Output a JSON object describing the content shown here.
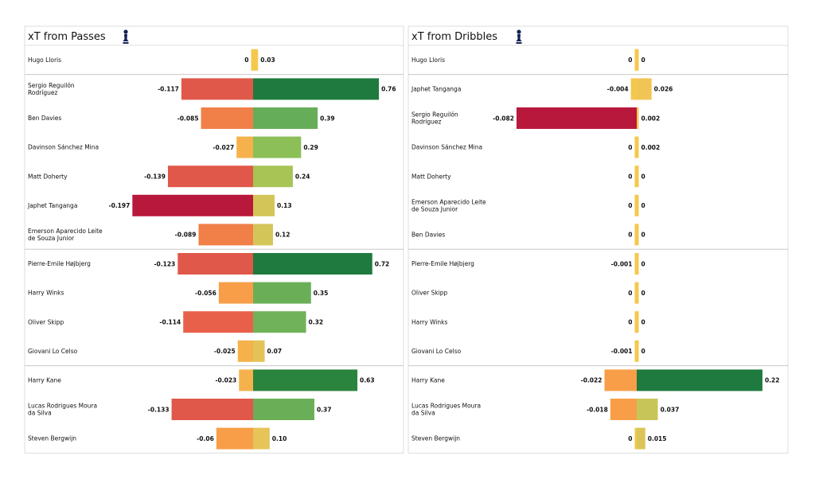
{
  "chart_data": [
    {
      "type": "bar",
      "title": "xT from Passes",
      "categories": [
        "Hugo Lloris",
        "Sergio Reguilón Rodríguez",
        "Ben Davies",
        "Davinson Sánchez Mina",
        "Matt Doherty",
        "Japhet Tanganga",
        "Emerson Aparecido Leite de Souza Junior",
        "Pierre-Emile Højbjerg",
        "Harry Winks",
        "Oliver Skipp",
        "Giovani Lo Celso",
        "Harry Kane",
        "Lucas Rodrigues Moura da Silva",
        "Steven Bergwijn"
      ],
      "name_lines": [
        [
          "Hugo Lloris"
        ],
        [
          "Sergio Reguilón",
          "Rodríguez"
        ],
        [
          "Ben Davies"
        ],
        [
          "Davinson Sánchez Mina"
        ],
        [
          "Matt Doherty"
        ],
        [
          "Japhet Tanganga"
        ],
        [
          "Emerson Aparecido Leite",
          "de Souza Junior"
        ],
        [
          "Pierre-Emile Højbjerg"
        ],
        [
          "Harry Winks"
        ],
        [
          "Oliver Skipp"
        ],
        [
          "Giovani Lo Celso"
        ],
        [
          "Harry Kane"
        ],
        [
          "Lucas Rodrigues Moura",
          "da Silva"
        ],
        [
          "Steven Bergwijn"
        ]
      ],
      "negative_values": [
        0,
        -0.117,
        -0.085,
        -0.027,
        -0.139,
        -0.197,
        -0.089,
        -0.123,
        -0.056,
        -0.114,
        -0.025,
        -0.023,
        -0.133,
        -0.06
      ],
      "positive_values": [
        0.03,
        0.76,
        0.39,
        0.29,
        0.24,
        0.13,
        0.12,
        0.72,
        0.35,
        0.32,
        0.07,
        0.63,
        0.37,
        0.1
      ],
      "negative_labels": [
        "0",
        "-0.117",
        "-0.085",
        "-0.027",
        "-0.139",
        "-0.197",
        "-0.089",
        "-0.123",
        "-0.056",
        "-0.114",
        "-0.025",
        "-0.023",
        "-0.133",
        "-0.06"
      ],
      "positive_labels": [
        "0.03",
        "0.76",
        "0.39",
        "0.29",
        "0.24",
        "0.13",
        "0.12",
        "0.72",
        "0.35",
        "0.32",
        "0.07",
        "0.63",
        "0.37",
        "0.10"
      ],
      "group_breaks_after": [
        0,
        6,
        10
      ],
      "negative_colors": [
        "#f5c84c",
        "#e0584a",
        "#f08048",
        "#f5b24c",
        "#e0584a",
        "#b8183c",
        "#f08048",
        "#e0584a",
        "#f89e48",
        "#e8604a",
        "#f5b24c",
        "#f5b24c",
        "#e0584a",
        "#f89e48"
      ],
      "positive_colors": [
        "#f5c84c",
        "#1e7a3e",
        "#66ad5a",
        "#8cbf58",
        "#a8c455",
        "#d4c558",
        "#d4c558",
        "#1e7a3e",
        "#6aaf58",
        "#70b25a",
        "#e3c358",
        "#2a843e",
        "#6aaf58",
        "#e6c458"
      ],
      "logo": "tottenham-crest-icon"
    },
    {
      "type": "bar",
      "title": "xT from Dribbles",
      "categories": [
        "Hugo Lloris",
        "Japhet Tanganga",
        "Sergio Reguilón Rodríguez",
        "Davinson Sánchez Mina",
        "Matt Doherty",
        "Emerson Aparecido Leite de Souza Junior",
        "Ben Davies",
        "Pierre-Emile Højbjerg",
        "Oliver Skipp",
        "Harry Winks",
        "Giovani Lo Celso",
        "Harry Kane",
        "Lucas Rodrigues Moura da Silva",
        "Steven Bergwijn"
      ],
      "name_lines": [
        [
          "Hugo Lloris"
        ],
        [
          "Japhet Tanganga"
        ],
        [
          "Sergio Reguilón",
          "Rodríguez"
        ],
        [
          "Davinson Sánchez Mina"
        ],
        [
          "Matt Doherty"
        ],
        [
          "Emerson Aparecido Leite",
          "de Souza Junior"
        ],
        [
          "Ben Davies"
        ],
        [
          "Pierre-Emile Højbjerg"
        ],
        [
          "Oliver Skipp"
        ],
        [
          "Harry Winks"
        ],
        [
          "Giovani Lo Celso"
        ],
        [
          "Harry Kane"
        ],
        [
          "Lucas Rodrigues Moura",
          "da Silva"
        ],
        [
          "Steven Bergwijn"
        ]
      ],
      "negative_values": [
        0,
        -0.004,
        -0.082,
        0,
        0,
        0,
        0,
        -0.001,
        0,
        0,
        -0.001,
        -0.022,
        -0.018,
        0
      ],
      "positive_values": [
        0,
        0.026,
        0.002,
        0.002,
        0,
        0,
        0,
        0,
        0,
        0,
        0,
        0.22,
        0.037,
        0.015
      ],
      "negative_labels": [
        "0",
        "-0.004",
        "-0.082",
        "0",
        "0",
        "0",
        "0",
        "-0.001",
        "0",
        "0",
        "-0.001",
        "-0.022",
        "-0.018",
        "0"
      ],
      "positive_labels": [
        "0",
        "0.026",
        "0.002",
        "0.002",
        "0",
        "0",
        "0",
        "0",
        "0",
        "0",
        "0",
        "0.22",
        "0.037",
        "0.015"
      ],
      "group_breaks_after": [
        0,
        6,
        10
      ],
      "negative_colors": [
        "#f5c84c",
        "#f5c84c",
        "#b8183c",
        "#f5c84c",
        "#f5c84c",
        "#f5c84c",
        "#f5c84c",
        "#f5c84c",
        "#f5c84c",
        "#f5c84c",
        "#f5c84c",
        "#f89e48",
        "#f89e48",
        "#f5c84c"
      ],
      "positive_colors": [
        "#f5c84c",
        "#f0c555",
        "#f5c84c",
        "#f5c84c",
        "#f5c84c",
        "#f5c84c",
        "#f5c84c",
        "#f5c84c",
        "#f5c84c",
        "#f5c84c",
        "#f5c84c",
        "#1e7a3e",
        "#c8c558",
        "#dcc558"
      ],
      "logo": "tottenham-crest-icon"
    }
  ]
}
